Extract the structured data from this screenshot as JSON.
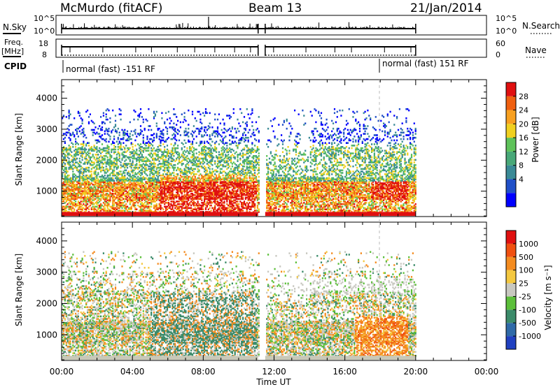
{
  "header": {
    "station": "McMurdo (fitACF)",
    "beam": "Beam 13",
    "date": "21/Jan/2014"
  },
  "strips": {
    "nsky_label": "N.Sky",
    "nsky_ticks": [
      "10^5",
      "10^0"
    ],
    "nsearch_label": "N.Search",
    "freq_label": "Freq.",
    "freq_unit": "[MHz]",
    "freq_ticks": [
      "18",
      "8"
    ],
    "nave_label": "Nave",
    "nave_ticks": [
      "60",
      "0"
    ],
    "cpid_label": "CPID",
    "cpid_segments": [
      "normal (fast) -151 RF",
      "normal (fast) 151 RF"
    ]
  },
  "x_axis": {
    "label": "Time UT",
    "ticks": [
      "00:00",
      "04:00",
      "08:00",
      "12:00",
      "16:00",
      "20:00",
      "00:00"
    ]
  },
  "chart_data": [
    {
      "type": "heatmap",
      "name": "power",
      "ylabel": "Slant Range [km]",
      "yticks": [
        1000,
        2000,
        3000,
        4000
      ],
      "ylim": [
        180,
        4600
      ],
      "xlim": [
        0,
        24
      ],
      "data_time_range": [
        0,
        20
      ],
      "data_gap_hours": [
        11.1,
        11.5
      ],
      "colorbar": {
        "label": "Power [dB]",
        "ticks": [
          "28",
          "24",
          "20",
          "16",
          "12",
          "8",
          "4"
        ],
        "colors": [
          "#0000ff",
          "#2050c8",
          "#3a8a96",
          "#48a878",
          "#5ec25a",
          "#f0d020",
          "#f8a020",
          "#f06010",
          "#e01010"
        ]
      }
    },
    {
      "type": "heatmap",
      "name": "velocity",
      "ylabel": "Slant Range [km]",
      "yticks": [
        1000,
        2000,
        3000,
        4000
      ],
      "ylim": [
        180,
        4600
      ],
      "xlim": [
        0,
        24
      ],
      "data_time_range": [
        0,
        20
      ],
      "data_gap_hours": [
        11.1,
        11.5
      ],
      "colorbar": {
        "label": "Velocity [m s⁻¹]",
        "ticks": [
          "1000",
          "500",
          "100",
          "25",
          "-25",
          "-100",
          "-500",
          "-1000"
        ],
        "colors": [
          "#2040c0",
          "#2f6aa8",
          "#3b8b6a",
          "#5cbf3a",
          "#c8c8c0",
          "#f4c840",
          "#f48c20",
          "#f05010",
          "#e01010"
        ]
      }
    }
  ]
}
